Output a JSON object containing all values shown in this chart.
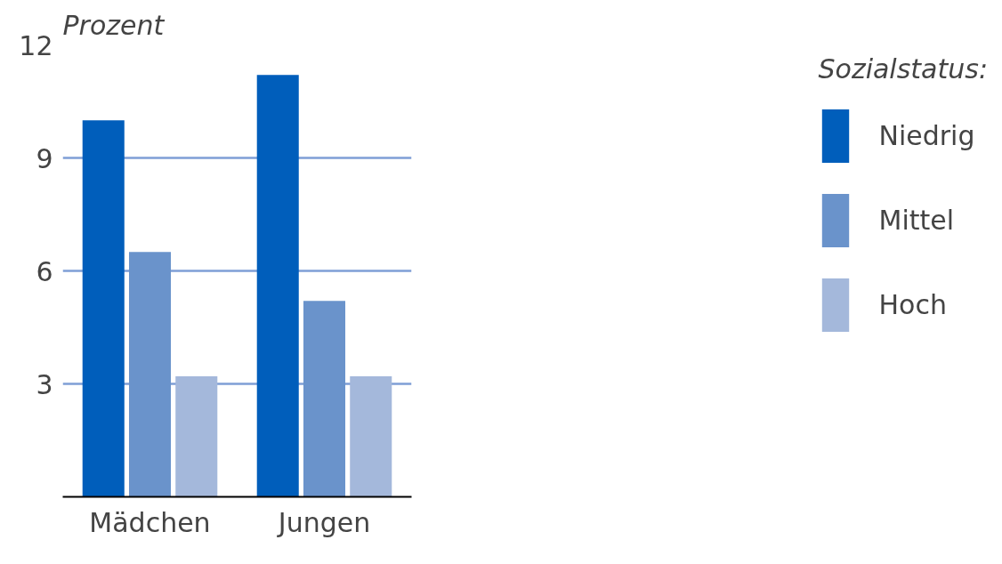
{
  "chart_data": {
    "type": "bar",
    "ylabel": "Prozent",
    "legend_title": "Sozialstatus:",
    "categories": [
      "Mädchen",
      "Jungen"
    ],
    "series": [
      {
        "name": "Niedrig",
        "color": "#005ebb",
        "values": [
          10.0,
          11.2
        ]
      },
      {
        "name": "Mittel",
        "color": "#6a93cb",
        "values": [
          6.5,
          5.2
        ]
      },
      {
        "name": "Hoch",
        "color": "#a4b8db",
        "values": [
          3.2,
          3.2
        ]
      }
    ],
    "ylim": [
      0,
      12
    ],
    "yticks": [
      3,
      6,
      9,
      12
    ],
    "grid": "y",
    "legend": "right"
  }
}
